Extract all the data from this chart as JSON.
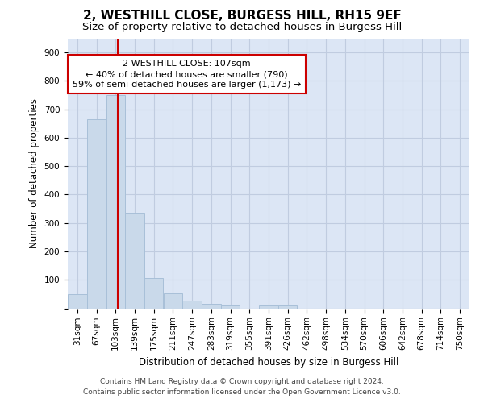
{
  "title": "2, WESTHILL CLOSE, BURGESS HILL, RH15 9EF",
  "subtitle": "Size of property relative to detached houses in Burgess Hill",
  "xlabel": "Distribution of detached houses by size in Burgess Hill",
  "ylabel": "Number of detached properties",
  "bin_labels": [
    "31sqm",
    "67sqm",
    "103sqm",
    "139sqm",
    "175sqm",
    "211sqm",
    "247sqm",
    "283sqm",
    "319sqm",
    "355sqm",
    "391sqm",
    "426sqm",
    "462sqm",
    "498sqm",
    "534sqm",
    "570sqm",
    "606sqm",
    "642sqm",
    "678sqm",
    "714sqm",
    "750sqm"
  ],
  "bar_heights": [
    50,
    665,
    750,
    335,
    107,
    52,
    27,
    15,
    10,
    0,
    10,
    10,
    0,
    0,
    0,
    0,
    0,
    0,
    0,
    0,
    0
  ],
  "bar_color": "#c9d9ea",
  "bar_edgecolor": "#a8c0d8",
  "vline_x_bin_index": 2,
  "vline_color": "#cc0000",
  "annotation_line1": "2 WESTHILL CLOSE: 107sqm",
  "annotation_line2": "← 40% of detached houses are smaller (790)",
  "annotation_line3": "59% of semi-detached houses are larger (1,173) →",
  "annotation_box_color": "#cc0000",
  "ylim": [
    0,
    950
  ],
  "yticks": [
    0,
    100,
    200,
    300,
    400,
    500,
    600,
    700,
    800,
    900
  ],
  "grid_color": "#c0cce0",
  "background_color": "#dce6f5",
  "footer_line1": "Contains HM Land Registry data © Crown copyright and database right 2024.",
  "footer_line2": "Contains public sector information licensed under the Open Government Licence v3.0.",
  "title_fontsize": 11,
  "subtitle_fontsize": 9.5,
  "axis_label_fontsize": 8.5,
  "tick_fontsize": 7.5,
  "annotation_fontsize": 8,
  "footer_fontsize": 6.5
}
